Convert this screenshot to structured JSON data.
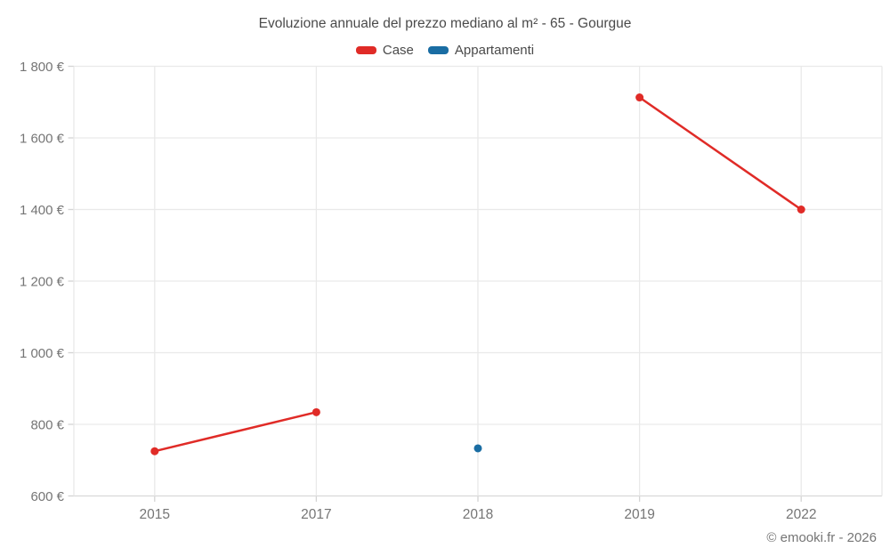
{
  "chart_data": {
    "type": "line",
    "title": "Evoluzione annuale del prezzo mediano al m² - 65 - Gourgue",
    "categories": [
      "2015",
      "2017",
      "2018",
      "2019",
      "2022"
    ],
    "series": [
      {
        "name": "Case",
        "color": "#e02b27",
        "values": [
          725,
          834,
          null,
          1713,
          1400
        ]
      },
      {
        "name": "Appartamenti",
        "color": "#1a6da3",
        "values": [
          null,
          null,
          733,
          null,
          null
        ]
      }
    ],
    "ylim": [
      600,
      1800
    ],
    "yticks": [
      {
        "value": 600,
        "label": "600 €"
      },
      {
        "value": 800,
        "label": "800 €"
      },
      {
        "value": 1000,
        "label": "1 000 €"
      },
      {
        "value": 1200,
        "label": "1 200 €"
      },
      {
        "value": 1400,
        "label": "1 400 €"
      },
      {
        "value": 1600,
        "label": "1 600 €"
      },
      {
        "value": 1800,
        "label": "1 800 €"
      }
    ],
    "grid": true,
    "legend_position": "top"
  },
  "footer": {
    "copyright": "© emooki.fr - 2026"
  },
  "colors": {
    "gridline": "#e9e9e9",
    "axis_line": "#d9d9d9",
    "tick": "#d4d4d4",
    "axis_label": "#757575",
    "title_text": "#4a4a4a"
  }
}
